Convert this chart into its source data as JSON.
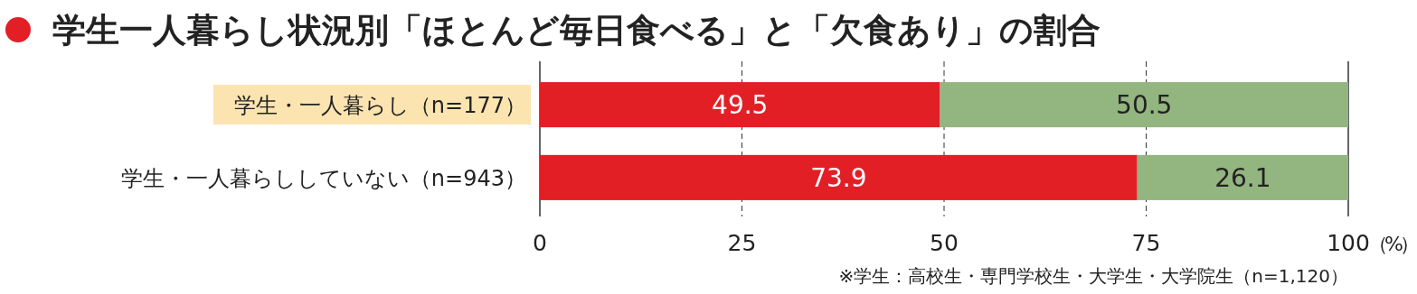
{
  "chart_data": {
    "type": "bar",
    "orientation": "horizontal",
    "stacked": true,
    "title": "学生一人暮らし状況別「ほとんど毎日食べる」と「欠食あり」の割合",
    "categories": [
      "学生・一人暮らし（n=177）",
      "学生・一人暮らししていない（n=943）"
    ],
    "series": [
      {
        "color": "#e31f26",
        "values": [
          49.5,
          73.9
        ]
      },
      {
        "color": "#93b57f",
        "values": [
          50.5,
          26.1
        ]
      }
    ],
    "xlim": [
      0,
      100
    ],
    "xticks": [
      0,
      25,
      50,
      75,
      100
    ],
    "xlabel": "（%）",
    "grid": "x",
    "data_labels": true,
    "annotations": [
      "※学生：高校生・専門学校生・大学生・大学院生（n=1,120）"
    ]
  }
}
